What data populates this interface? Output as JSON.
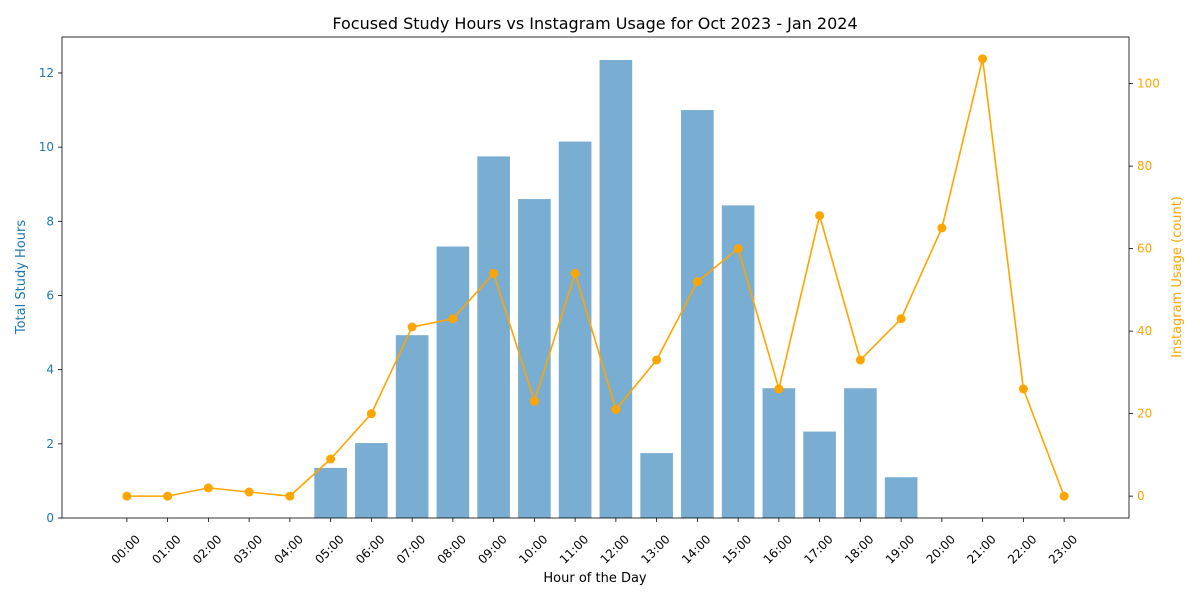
{
  "chart_data": {
    "type": "bar+line",
    "title": "Focused Study Hours vs Instagram Usage for Oct 2023 - Jan 2024",
    "xlabel": "Hour of the Day",
    "ylabel_left": "Total Study Hours",
    "ylabel_right": "Instagram Usage (count)",
    "categories": [
      "00:00",
      "01:00",
      "02:00",
      "03:00",
      "04:00",
      "05:00",
      "06:00",
      "07:00",
      "08:00",
      "09:00",
      "10:00",
      "11:00",
      "12:00",
      "13:00",
      "14:00",
      "15:00",
      "16:00",
      "17:00",
      "18:00",
      "19:00",
      "20:00",
      "21:00",
      "22:00",
      "23:00"
    ],
    "series": [
      {
        "name": "Total Study Hours",
        "kind": "bar",
        "axis": "left",
        "values": [
          0,
          0,
          0,
          0,
          0,
          1.35,
          2.02,
          4.93,
          7.32,
          9.75,
          8.6,
          10.15,
          12.35,
          1.75,
          11.0,
          8.43,
          3.5,
          2.33,
          3.5,
          1.1,
          0,
          0,
          0,
          0
        ]
      },
      {
        "name": "Instagram Usage (count)",
        "kind": "line",
        "axis": "right",
        "values": [
          0,
          0,
          2,
          1,
          0,
          9,
          20,
          41,
          43,
          54,
          23,
          54,
          21,
          33,
          52,
          60,
          26,
          68,
          33,
          43,
          65,
          106,
          26,
          0
        ]
      }
    ],
    "ylim_left": [
      0,
      12.97
    ],
    "ylim_right": [
      -5.3,
      111.3
    ],
    "yticks_left": [
      0,
      2,
      4,
      6,
      8,
      10,
      12
    ],
    "yticks_right": [
      0,
      20,
      40,
      60,
      80,
      100
    ],
    "grid": false,
    "colors": {
      "bar": "#1f77b4",
      "line": "#FFA500",
      "left_axis_text": "#1f77b4",
      "right_axis_text": "#FFA500"
    }
  }
}
